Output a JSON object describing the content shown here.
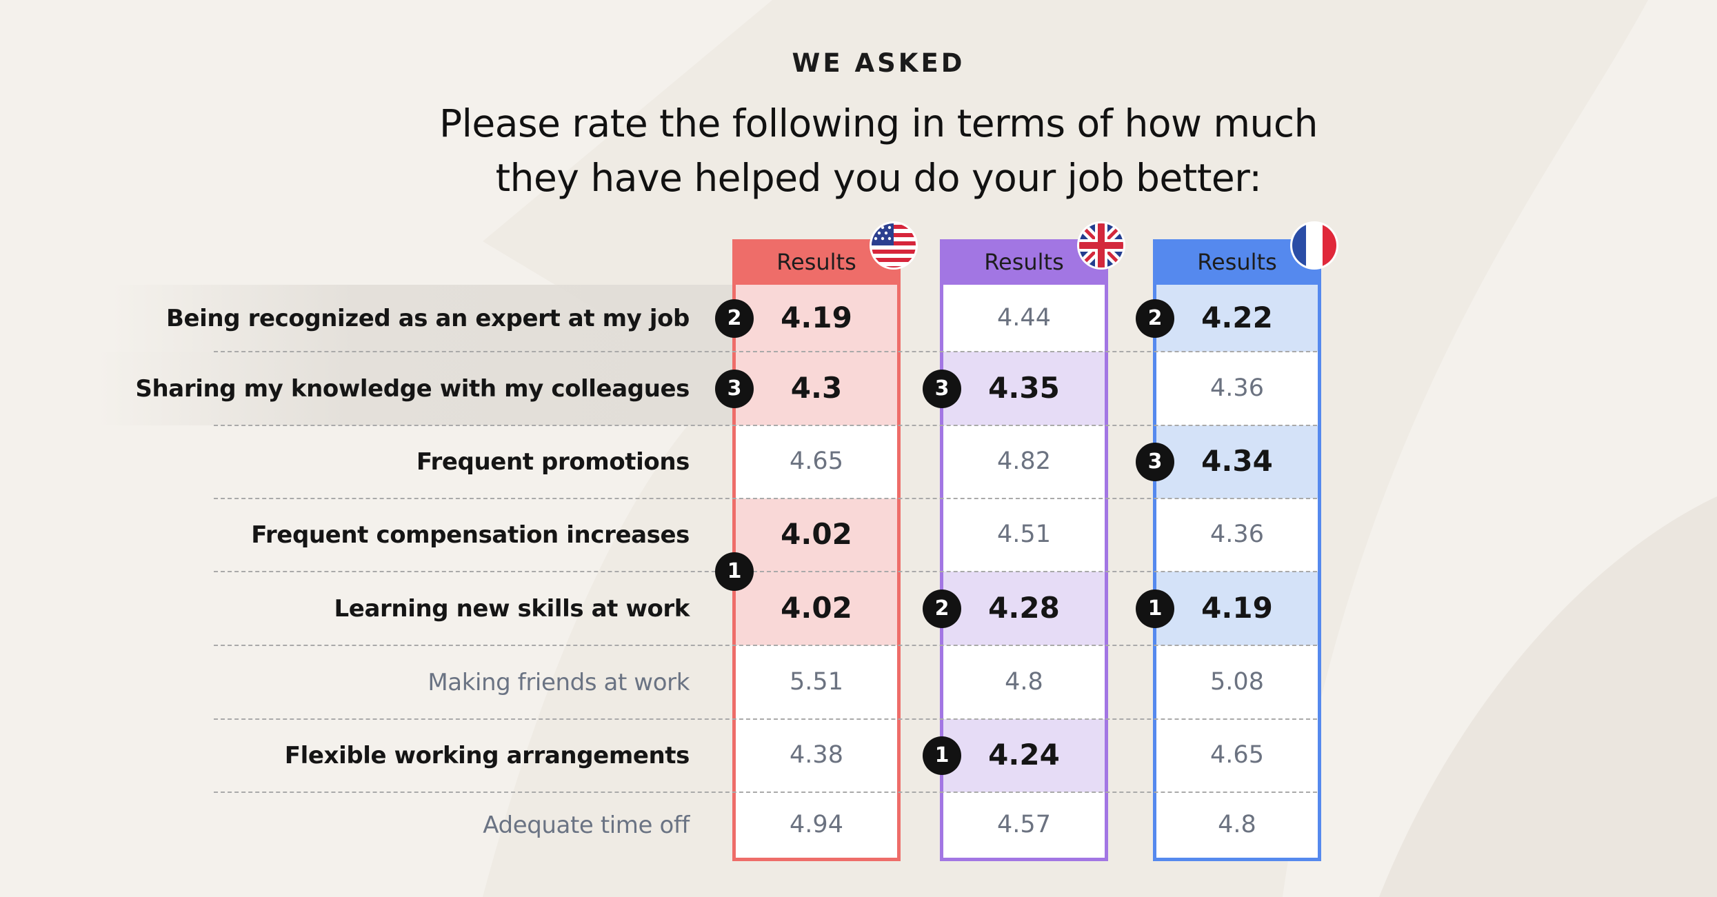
{
  "header": {
    "eyebrow": "WE ASKED",
    "headline_line1": "Please rate the following in terms of how much",
    "headline_line2": "they have helped you do your job better:"
  },
  "chart_data": {
    "type": "table",
    "columns": [
      {
        "header": "Results",
        "flag_icon": "us-flag-icon",
        "color": "#ee6d69",
        "highlight": "#f9d8d7"
      },
      {
        "header": "Results",
        "flag_icon": "uk-flag-icon",
        "color": "#a276e3",
        "highlight": "#e6dcf6"
      },
      {
        "header": "Results",
        "flag_icon": "fr-flag-icon",
        "color": "#5589ee",
        "highlight": "#d4e2f8"
      }
    ],
    "rows": [
      {
        "label": "Being recognized as an expert at my job",
        "emphasis": true,
        "row_highlight": true,
        "values": [
          "4.19",
          "4.44",
          "4.22"
        ],
        "bold": [
          true,
          false,
          true
        ],
        "rank": [
          "2",
          null,
          "2"
        ]
      },
      {
        "label": "Sharing my knowledge with my colleagues",
        "emphasis": true,
        "row_highlight": true,
        "values": [
          "4.3",
          "4.35",
          "4.36"
        ],
        "bold": [
          true,
          true,
          false
        ],
        "rank": [
          "3",
          "3",
          null
        ]
      },
      {
        "label": "Frequent promotions",
        "emphasis": true,
        "row_highlight": false,
        "values": [
          "4.65",
          "4.82",
          "4.34"
        ],
        "bold": [
          false,
          false,
          true
        ],
        "rank": [
          null,
          null,
          "3"
        ]
      },
      {
        "label": "Frequent compensation increases",
        "emphasis": true,
        "row_highlight": false,
        "values": [
          "4.02",
          "4.51",
          "4.36"
        ],
        "bold": [
          true,
          false,
          false
        ],
        "rank": [
          null,
          null,
          null
        ]
      },
      {
        "label": "Learning new skills at work",
        "emphasis": true,
        "row_highlight": false,
        "values": [
          "4.02",
          "4.28",
          "4.19"
        ],
        "bold": [
          true,
          true,
          true
        ],
        "rank": [
          null,
          "2",
          "1"
        ]
      },
      {
        "label": "Making friends at work",
        "emphasis": false,
        "row_highlight": false,
        "values": [
          "5.51",
          "4.8",
          "5.08"
        ],
        "bold": [
          false,
          false,
          false
        ],
        "rank": [
          null,
          null,
          null
        ]
      },
      {
        "label": "Flexible working arrangements",
        "emphasis": true,
        "row_highlight": false,
        "values": [
          "4.38",
          "4.24",
          "4.65"
        ],
        "bold": [
          false,
          true,
          false
        ],
        "rank": [
          null,
          "1",
          null
        ]
      },
      {
        "label": "Adequate time off",
        "emphasis": false,
        "row_highlight": false,
        "values": [
          "4.94",
          "4.57",
          "4.8"
        ],
        "bold": [
          false,
          false,
          false
        ],
        "rank": [
          null,
          null,
          null
        ]
      }
    ],
    "tie_rank": {
      "column": 0,
      "rows": [
        3,
        4
      ],
      "rank": "1"
    }
  }
}
